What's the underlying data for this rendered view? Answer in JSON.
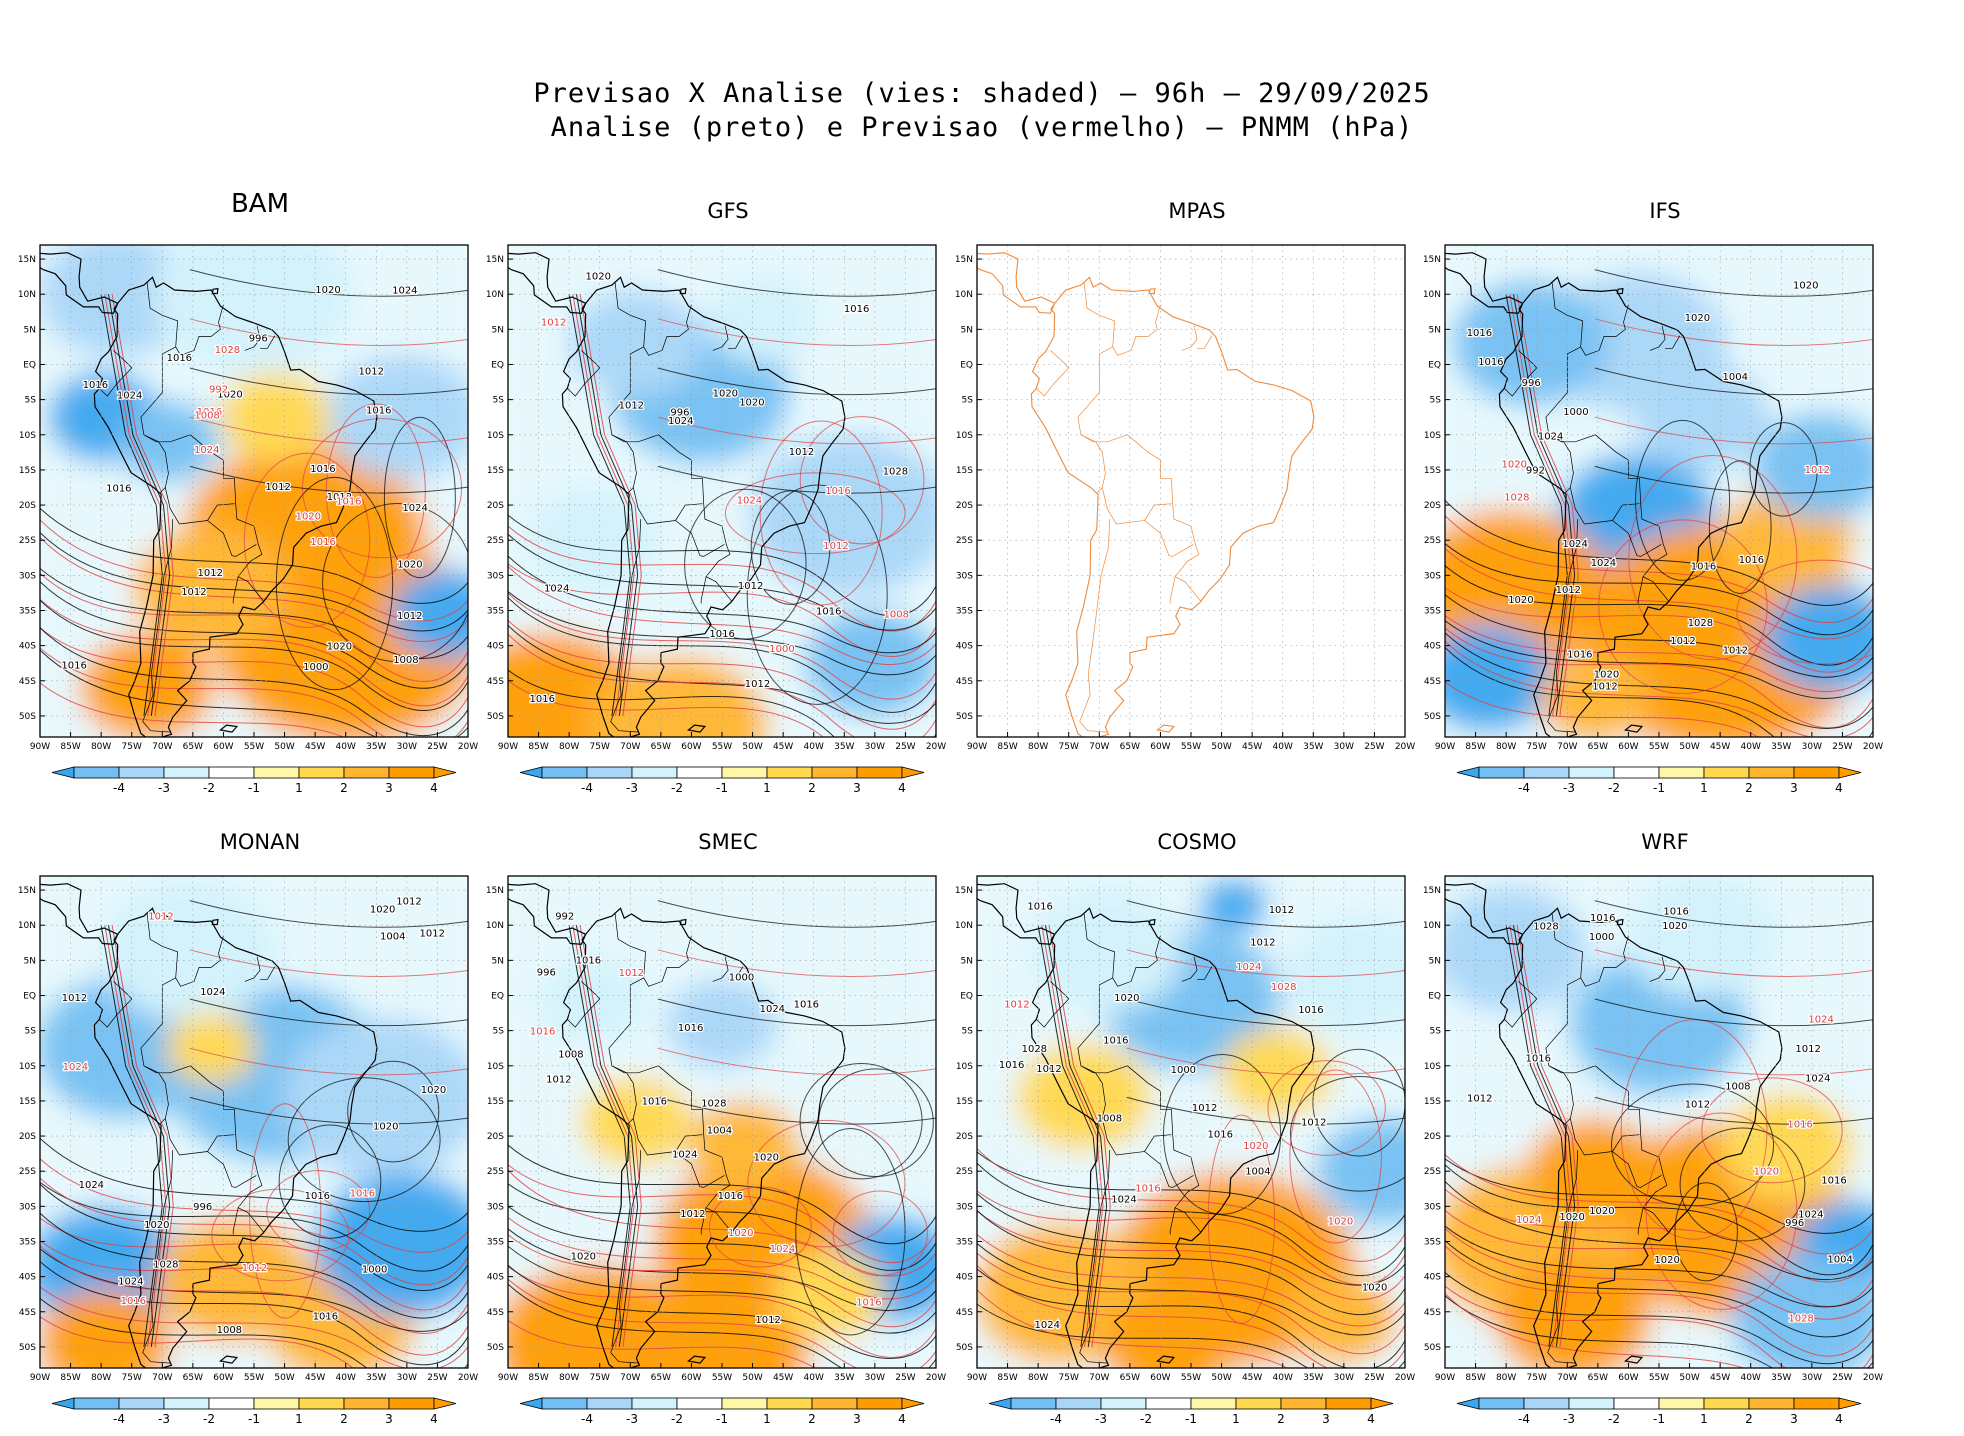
{
  "figure": {
    "title_line1": "Previsao X Analise (vies: shaded) — 96h — 29/09/2025",
    "title_line2": "Analise (preto) e Previsao (vermelho) — PNMM (hPa)"
  },
  "map_axes": {
    "lat_labels": [
      "15N",
      "10N",
      "5N",
      "EQ",
      "5S",
      "10S",
      "15S",
      "20S",
      "25S",
      "30S",
      "35S",
      "40S",
      "45S",
      "50S"
    ],
    "lon_labels": [
      "90W",
      "85W",
      "80W",
      "75W",
      "70W",
      "65W",
      "60W",
      "55W",
      "50W",
      "45W",
      "40W",
      "35W",
      "30W",
      "25W",
      "20W"
    ]
  },
  "colorbar": {
    "labels": [
      "-4",
      "-3",
      "-2",
      "-1",
      "1",
      "2",
      "3",
      "4"
    ],
    "colors": [
      "#3aa6f0",
      "#72bff3",
      "#a8d6f8",
      "#d2f2fc",
      "#ffffff",
      "#fff7a8",
      "#ffd84d",
      "#ffb52e",
      "#ff9d00"
    ]
  },
  "legend_colors": {
    "analysis_contour": "#000000",
    "forecast_contour": "#e04040",
    "coastline_mpas": "#f08a3a"
  },
  "panels": [
    {
      "name": "BAM",
      "labels": [
        {
          "t": "1016",
          "k": "a"
        },
        {
          "t": "1016",
          "k": "a"
        },
        {
          "t": "1012",
          "k": "a"
        },
        {
          "t": "1012",
          "k": "a"
        },
        {
          "t": "1016",
          "k": "f"
        },
        {
          "t": "1016",
          "k": "f"
        },
        {
          "t": "1012",
          "k": "a"
        },
        {
          "t": "1012",
          "k": "a"
        },
        {
          "t": "1020",
          "k": "a"
        },
        {
          "t": "1016",
          "k": "a"
        },
        {
          "t": "1012",
          "k": "a"
        },
        {
          "t": "1016",
          "k": "a"
        },
        {
          "t": "1020",
          "k": "a"
        },
        {
          "t": "1020",
          "k": "f"
        },
        {
          "t": "1008",
          "k": "a"
        },
        {
          "t": "1016",
          "k": "f"
        },
        {
          "t": "1016",
          "k": "a"
        },
        {
          "t": "1024",
          "k": "a"
        },
        {
          "t": "1020",
          "k": "a"
        },
        {
          "t": "1024",
          "k": "a"
        },
        {
          "t": "1020",
          "k": "a"
        },
        {
          "t": "1016",
          "k": "a"
        },
        {
          "t": "1012",
          "k": "a"
        },
        {
          "t": "1028",
          "k": "f"
        },
        {
          "t": "1024",
          "k": "a"
        },
        {
          "t": "1008",
          "k": "f"
        },
        {
          "t": "1000",
          "k": "a"
        },
        {
          "t": "996",
          "k": "a"
        },
        {
          "t": "992",
          "k": "f"
        },
        {
          "t": "1024",
          "k": "f"
        }
      ]
    },
    {
      "name": "GFS",
      "labels": [
        {
          "t": "1016",
          "k": "a"
        },
        {
          "t": "1012",
          "k": "a"
        },
        {
          "t": "1012",
          "k": "a"
        },
        {
          "t": "1016",
          "k": "a"
        },
        {
          "t": "1016",
          "k": "f"
        },
        {
          "t": "1012",
          "k": "a"
        },
        {
          "t": "1020",
          "k": "a"
        },
        {
          "t": "1012",
          "k": "f"
        },
        {
          "t": "1020",
          "k": "a"
        },
        {
          "t": "1024",
          "k": "f"
        },
        {
          "t": "1016",
          "k": "a"
        },
        {
          "t": "1024",
          "k": "a"
        },
        {
          "t": "1020",
          "k": "a"
        },
        {
          "t": "1016",
          "k": "a"
        },
        {
          "t": "1012",
          "k": "f"
        },
        {
          "t": "1012",
          "k": "a"
        },
        {
          "t": "1008",
          "k": "f"
        },
        {
          "t": "1028",
          "k": "a"
        },
        {
          "t": "1024",
          "k": "a"
        },
        {
          "t": "1000",
          "k": "f"
        },
        {
          "t": "996",
          "k": "a"
        }
      ]
    },
    {
      "name": "MPAS",
      "labels": []
    },
    {
      "name": "IFS",
      "labels": [
        {
          "t": "1016",
          "k": "a"
        },
        {
          "t": "1012",
          "k": "a"
        },
        {
          "t": "1016",
          "k": "a"
        },
        {
          "t": "1012",
          "k": "a"
        },
        {
          "t": "1012",
          "k": "f"
        },
        {
          "t": "1020",
          "k": "a"
        },
        {
          "t": "1020",
          "k": "f"
        },
        {
          "t": "1012",
          "k": "a"
        },
        {
          "t": "1020",
          "k": "a"
        },
        {
          "t": "1024",
          "k": "a"
        },
        {
          "t": "1016",
          "k": "a"
        },
        {
          "t": "1020",
          "k": "a"
        },
        {
          "t": "1016",
          "k": "a"
        },
        {
          "t": "1024",
          "k": "a"
        },
        {
          "t": "1020",
          "k": "a"
        },
        {
          "t": "1016",
          "k": "a"
        },
        {
          "t": "1012",
          "k": "a"
        },
        {
          "t": "1028",
          "k": "a"
        },
        {
          "t": "1024",
          "k": "a"
        },
        {
          "t": "1028",
          "k": "f"
        },
        {
          "t": "1004",
          "k": "a"
        },
        {
          "t": "1000",
          "k": "a"
        },
        {
          "t": "996",
          "k": "a"
        },
        {
          "t": "992",
          "k": "a"
        }
      ]
    },
    {
      "name": "MONAN",
      "labels": [
        {
          "t": "1012",
          "k": "a"
        },
        {
          "t": "1012",
          "k": "a"
        },
        {
          "t": "1016",
          "k": "f"
        },
        {
          "t": "1016",
          "k": "f"
        },
        {
          "t": "1020",
          "k": "a"
        },
        {
          "t": "1012",
          "k": "f"
        },
        {
          "t": "1020",
          "k": "a"
        },
        {
          "t": "1024",
          "k": "f"
        },
        {
          "t": "1012",
          "k": "a"
        },
        {
          "t": "1020",
          "k": "a"
        },
        {
          "t": "1016",
          "k": "a"
        },
        {
          "t": "1024",
          "k": "a"
        },
        {
          "t": "1020",
          "k": "a"
        },
        {
          "t": "1024",
          "k": "a"
        },
        {
          "t": "1012",
          "k": "f"
        },
        {
          "t": "1028",
          "k": "a"
        },
        {
          "t": "1024",
          "k": "a"
        },
        {
          "t": "1008",
          "k": "a"
        },
        {
          "t": "1004",
          "k": "a"
        },
        {
          "t": "1000",
          "k": "a"
        },
        {
          "t": "996",
          "k": "a"
        },
        {
          "t": "1016",
          "k": "a"
        }
      ]
    },
    {
      "name": "SMEC",
      "labels": [
        {
          "t": "1016",
          "k": "f"
        },
        {
          "t": "1016",
          "k": "a"
        },
        {
          "t": "1016",
          "k": "a"
        },
        {
          "t": "1012",
          "k": "a"
        },
        {
          "t": "1012",
          "k": "a"
        },
        {
          "t": "1016",
          "k": "a"
        },
        {
          "t": "1020",
          "k": "a"
        },
        {
          "t": "1024",
          "k": "f"
        },
        {
          "t": "1016",
          "k": "a"
        },
        {
          "t": "1020",
          "k": "a"
        },
        {
          "t": "1024",
          "k": "a"
        },
        {
          "t": "1012",
          "k": "a"
        },
        {
          "t": "1008",
          "k": "a"
        },
        {
          "t": "1016",
          "k": "f"
        },
        {
          "t": "1024",
          "k": "a"
        },
        {
          "t": "1028",
          "k": "a"
        },
        {
          "t": "1016",
          "k": "a"
        },
        {
          "t": "1012",
          "k": "f"
        },
        {
          "t": "1004",
          "k": "a"
        },
        {
          "t": "1000",
          "k": "a"
        },
        {
          "t": "996",
          "k": "a"
        },
        {
          "t": "992",
          "k": "a"
        },
        {
          "t": "1020",
          "k": "f"
        }
      ]
    },
    {
      "name": "COSMO",
      "labels": [
        {
          "t": "1016",
          "k": "a"
        },
        {
          "t": "1012",
          "k": "a"
        },
        {
          "t": "1016",
          "k": "a"
        },
        {
          "t": "1016",
          "k": "a"
        },
        {
          "t": "1012",
          "k": "a"
        },
        {
          "t": "1012",
          "k": "f"
        },
        {
          "t": "1016",
          "k": "f"
        },
        {
          "t": "1020",
          "k": "a"
        },
        {
          "t": "1012",
          "k": "a"
        },
        {
          "t": "1020",
          "k": "a"
        },
        {
          "t": "1016",
          "k": "a"
        },
        {
          "t": "1020",
          "k": "f"
        },
        {
          "t": "1024",
          "k": "a"
        },
        {
          "t": "1028",
          "k": "f"
        },
        {
          "t": "1016",
          "k": "a"
        },
        {
          "t": "1012",
          "k": "a"
        },
        {
          "t": "1024",
          "k": "f"
        },
        {
          "t": "1028",
          "k": "a"
        },
        {
          "t": "1024",
          "k": "a"
        },
        {
          "t": "1008",
          "k": "a"
        },
        {
          "t": "1004",
          "k": "a"
        },
        {
          "t": "1000",
          "k": "a"
        },
        {
          "t": "1012",
          "k": "a"
        },
        {
          "t": "1020",
          "k": "f"
        }
      ]
    },
    {
      "name": "WRF",
      "labels": [
        {
          "t": "1012",
          "k": "a"
        },
        {
          "t": "1020",
          "k": "a"
        },
        {
          "t": "1016",
          "k": "a"
        },
        {
          "t": "1020",
          "k": "a"
        },
        {
          "t": "1016",
          "k": "a"
        },
        {
          "t": "1012",
          "k": "a"
        },
        {
          "t": "1024",
          "k": "f"
        },
        {
          "t": "1016",
          "k": "a"
        },
        {
          "t": "1020",
          "k": "a"
        },
        {
          "t": "1028",
          "k": "f"
        },
        {
          "t": "1020",
          "k": "a"
        },
        {
          "t": "1024",
          "k": "a"
        },
        {
          "t": "1016",
          "k": "a"
        },
        {
          "t": "1012",
          "k": "a"
        },
        {
          "t": "1028",
          "k": "a"
        },
        {
          "t": "1024",
          "k": "a"
        },
        {
          "t": "1020",
          "k": "f"
        },
        {
          "t": "1016",
          "k": "f"
        },
        {
          "t": "1008",
          "k": "a"
        },
        {
          "t": "1004",
          "k": "a"
        },
        {
          "t": "1000",
          "k": "a"
        },
        {
          "t": "996",
          "k": "a"
        },
        {
          "t": "1024",
          "k": "f"
        }
      ]
    }
  ]
}
